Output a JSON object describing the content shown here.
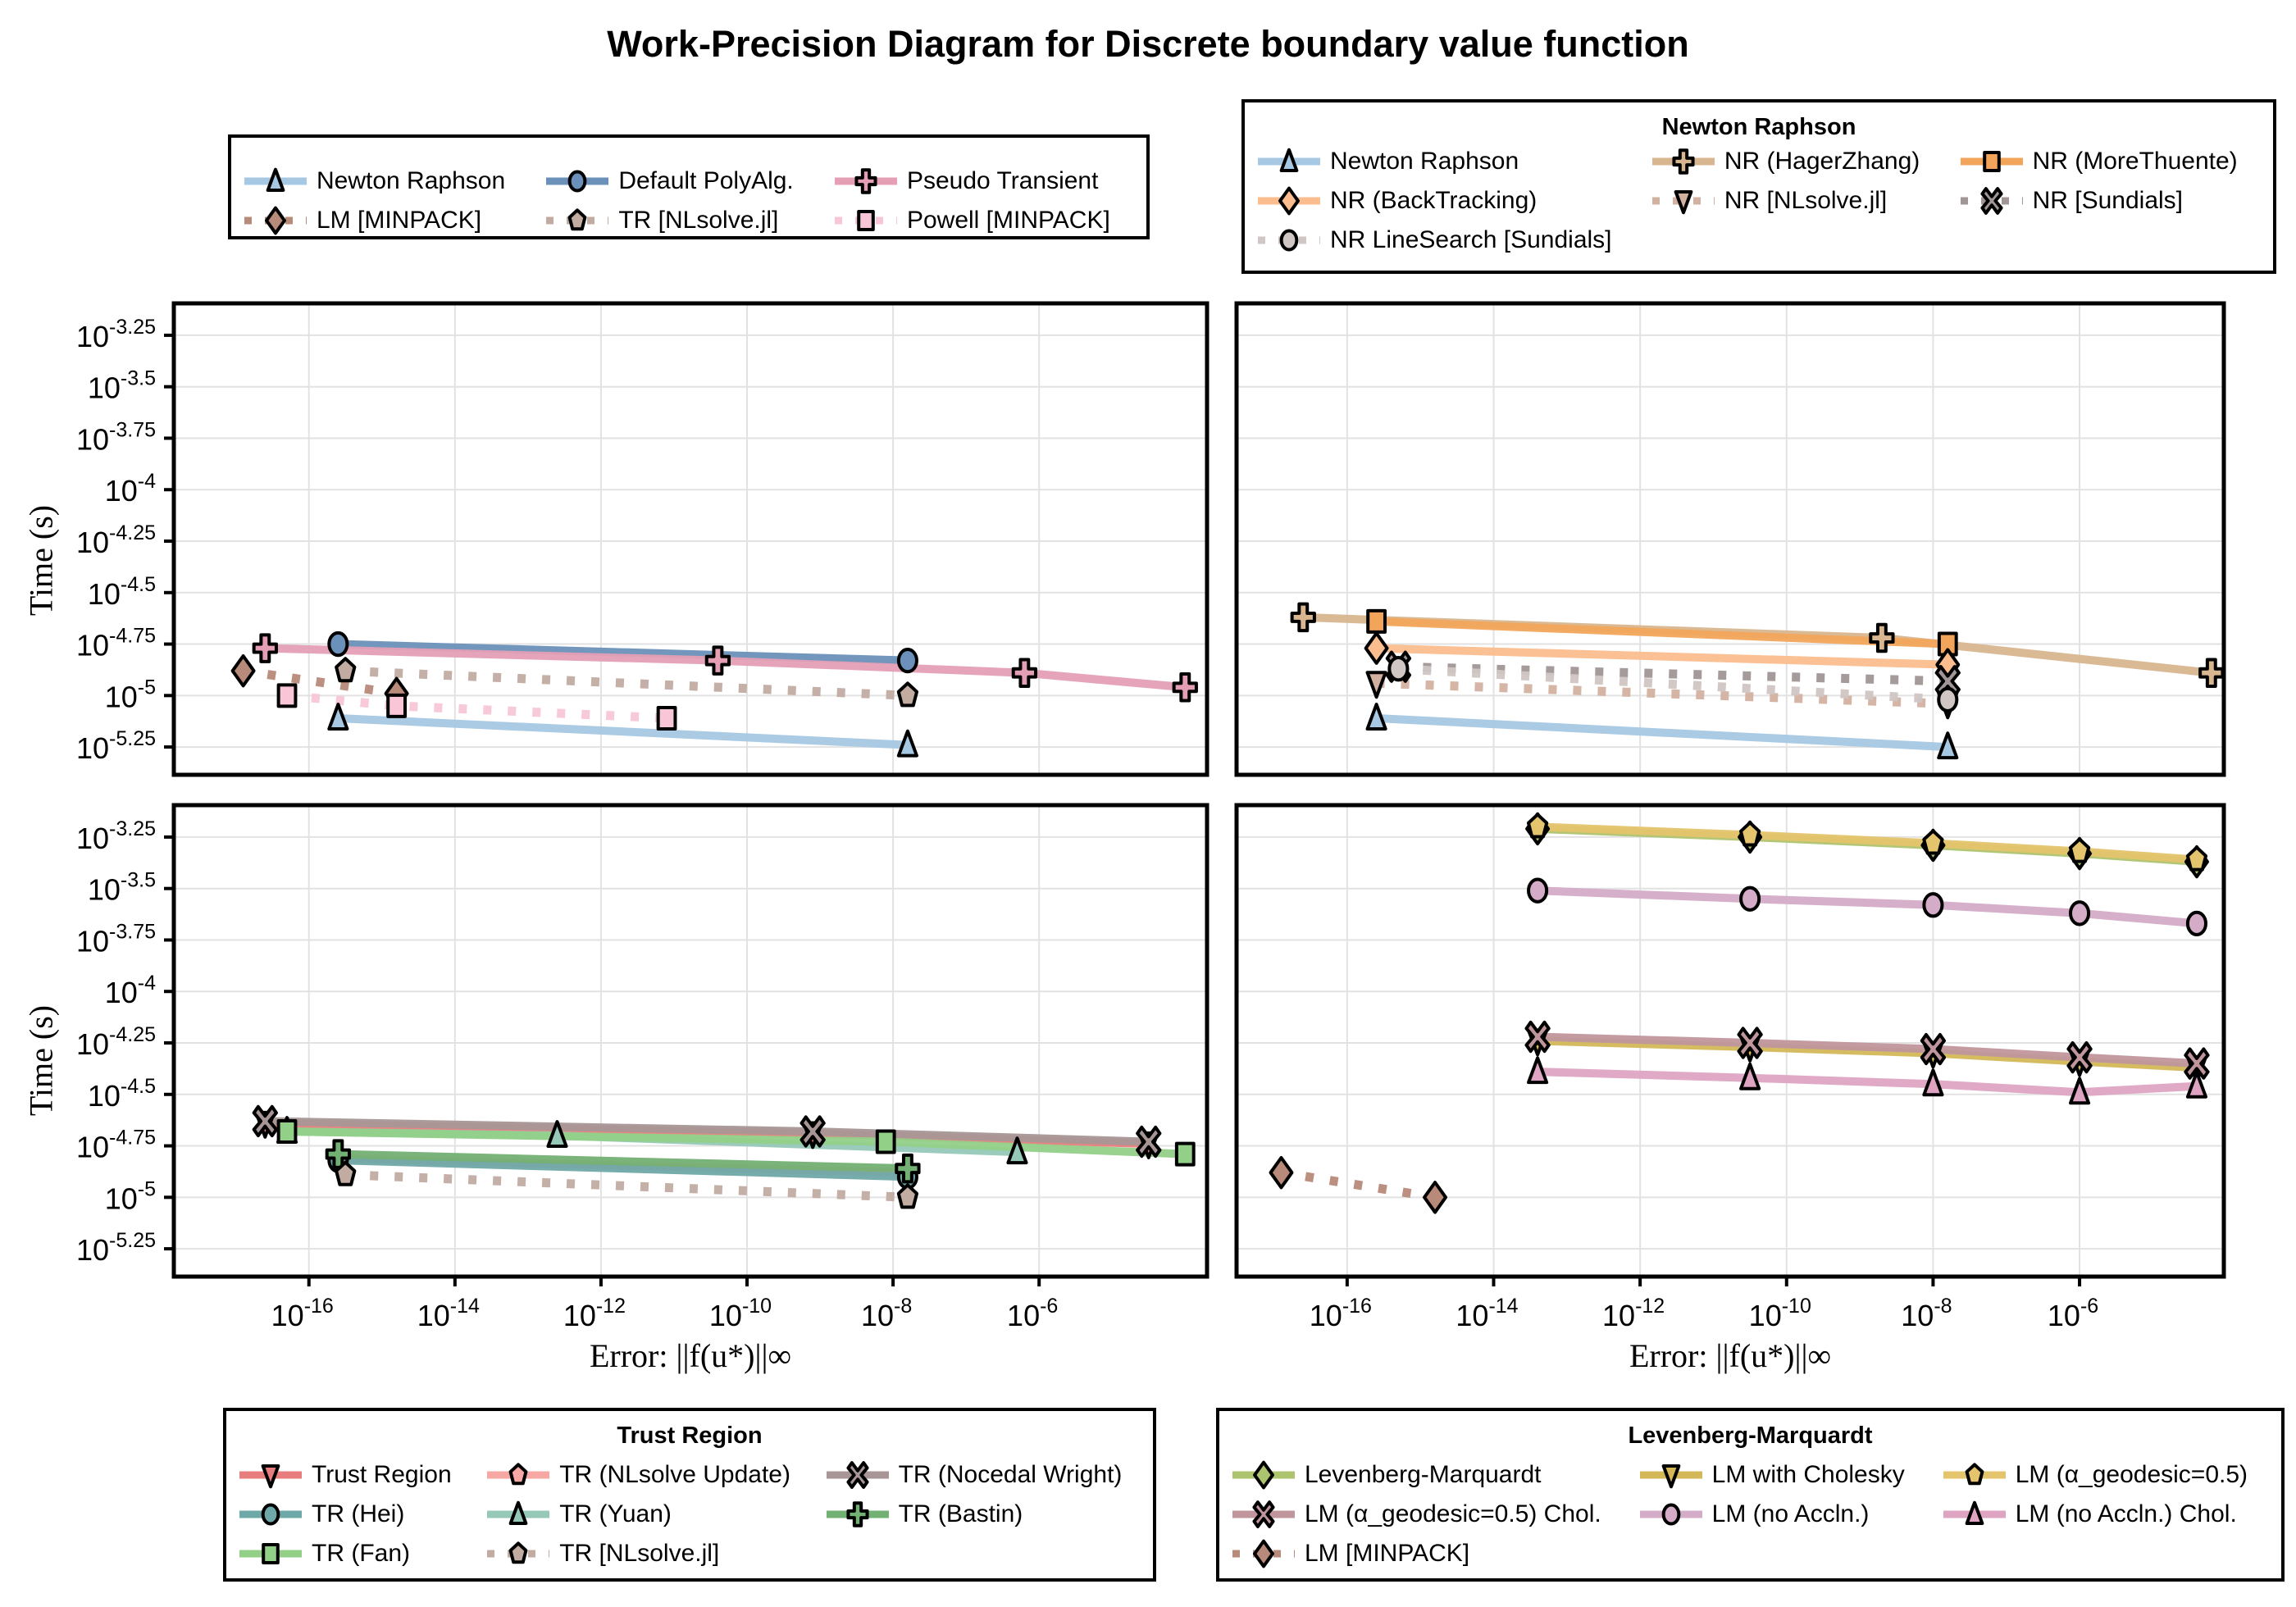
{
  "chart_data": {
    "type": "line",
    "title": "Work-Precision Diagram for Discrete boundary value function",
    "xlabel": "Error: ||f(u*)||∞",
    "ylabel": "Time (s)",
    "xscale": "log10",
    "yscale": "log10",
    "xlim_log10": [
      -17.5,
      -3.4
    ],
    "ylim_log10": [
      -5.4,
      -3.15
    ],
    "x_ticks": [
      {
        "base": "10",
        "exp": "-16",
        "v": -16
      },
      {
        "base": "10",
        "exp": "-14",
        "v": -14
      },
      {
        "base": "10",
        "exp": "-12",
        "v": -12
      },
      {
        "base": "10",
        "exp": "-10",
        "v": -10
      },
      {
        "base": "10",
        "exp": "-8",
        "v": -8
      },
      {
        "base": "10",
        "exp": "-6",
        "v": -6
      }
    ],
    "y_ticks": [
      {
        "base": "10",
        "exp": "-3.25",
        "v": -3.25
      },
      {
        "base": "10",
        "exp": "-3.5",
        "v": -3.5
      },
      {
        "base": "10",
        "exp": "-3.75",
        "v": -3.75
      },
      {
        "base": "10",
        "exp": "-4",
        "v": -4
      },
      {
        "base": "10",
        "exp": "-4.25",
        "v": -4.25
      },
      {
        "base": "10",
        "exp": "-4.5",
        "v": -4.5
      },
      {
        "base": "10",
        "exp": "-4.75",
        "v": -4.75
      },
      {
        "base": "10",
        "exp": "-5",
        "v": -5
      },
      {
        "base": "10",
        "exp": "-5.25",
        "v": -5.25
      }
    ],
    "grid": true,
    "panels": [
      {
        "id": "top-left",
        "legend": {
          "title": "",
          "placement": "top-left",
          "columns": 3
        },
        "series": [
          {
            "name": "Newton Raphson",
            "color": "#a6c8e3",
            "marker": "triangle-up",
            "dash": false,
            "log_error": [
              -15.6,
              -7.8
            ],
            "log_time": [
              -5.11,
              -5.24
            ]
          },
          {
            "name": "Default PolyAlg.",
            "color": "#6b90b9",
            "marker": "circle",
            "dash": false,
            "log_error": [
              -15.6,
              -7.8
            ],
            "log_time": [
              -4.75,
              -4.83
            ]
          },
          {
            "name": "Pseudo Transient",
            "color": "#e49fb5",
            "marker": "cross",
            "dash": false,
            "log_error": [
              -16.6,
              -10.4,
              -6.2,
              -4.0
            ],
            "log_time": [
              -4.77,
              -4.83,
              -4.89,
              -4.96
            ]
          },
          {
            "name": "LM [MINPACK]",
            "color": "#b88a7a",
            "marker": "diamond",
            "dash": true,
            "log_error": [
              -16.9,
              -14.8
            ],
            "log_time": [
              -4.88,
              -4.99
            ]
          },
          {
            "name": "TR [NLsolve.jl]",
            "color": "#c2aca2",
            "marker": "pentagon",
            "dash": true,
            "log_error": [
              -15.5,
              -7.8
            ],
            "log_time": [
              -4.88,
              -5.0
            ]
          },
          {
            "name": "Powell [MINPACK]",
            "color": "#f8c6d6",
            "marker": "rect",
            "dash": true,
            "log_error": [
              -16.3,
              -14.8,
              -11.1
            ],
            "log_time": [
              -5.0,
              -5.05,
              -5.11
            ]
          }
        ]
      },
      {
        "id": "top-right",
        "legend": {
          "title": "Newton Raphson",
          "placement": "top-right",
          "columns": 3
        },
        "series": [
          {
            "name": "Newton Raphson",
            "color": "#a6c8e3",
            "marker": "triangle-up",
            "dash": false,
            "log_error": [
              -15.6,
              -7.8
            ],
            "log_time": [
              -5.11,
              -5.25
            ]
          },
          {
            "name": "NR (HagerZhang)",
            "color": "#d8b68f",
            "marker": "cross",
            "dash": false,
            "log_error": [
              -16.6,
              -8.7,
              -4.2
            ],
            "log_time": [
              -4.62,
              -4.72,
              -4.89
            ]
          },
          {
            "name": "NR (MoreThuente)",
            "color": "#f2a55a",
            "marker": "rect",
            "dash": false,
            "log_error": [
              -15.6,
              -7.8
            ],
            "log_time": [
              -4.64,
              -4.75
            ]
          },
          {
            "name": "NR (BackTracking)",
            "color": "#fbbd8e",
            "marker": "diamond",
            "dash": false,
            "log_error": [
              -15.6,
              -7.8
            ],
            "log_time": [
              -4.77,
              -4.85
            ]
          },
          {
            "name": "NR [NLsolve.jl]",
            "color": "#d3b1a0",
            "marker": "triangle-down",
            "dash": true,
            "log_error": [
              -15.6,
              -7.8
            ],
            "log_time": [
              -4.94,
              -5.04
            ]
          },
          {
            "name": "NR [Sundials]",
            "color": "#a09696",
            "marker": "x",
            "dash": true,
            "log_error": [
              -15.3,
              -7.8
            ],
            "log_time": [
              -4.86,
              -4.93
            ]
          },
          {
            "name": "NR LineSearch [Sundials]",
            "color": "#d0c6c4",
            "marker": "circle",
            "dash": true,
            "log_error": [
              -15.3,
              -7.8
            ],
            "log_time": [
              -4.87,
              -5.02
            ]
          }
        ]
      },
      {
        "id": "bottom-left",
        "legend": {
          "title": "Trust Region",
          "placement": "bottom-left",
          "columns": 3
        },
        "series": [
          {
            "name": "Trust Region",
            "color": "#e87d7d",
            "marker": "triangle-down",
            "dash": false,
            "log_error": [
              -16.6,
              -9.1,
              -4.5
            ],
            "log_time": [
              -4.64,
              -4.69,
              -4.74
            ]
          },
          {
            "name": "TR (NLsolve Update)",
            "color": "#f7a8a4",
            "marker": "pentagon",
            "dash": false,
            "log_error": [
              -15.6,
              -7.8
            ],
            "log_time": [
              -4.81,
              -4.88
            ]
          },
          {
            "name": "TR (Nocedal Wright)",
            "color": "#a89696",
            "marker": "x",
            "dash": false,
            "log_error": [
              -16.6,
              -9.1,
              -4.5
            ],
            "log_time": [
              -4.63,
              -4.68,
              -4.73
            ]
          },
          {
            "name": "TR (Hei)",
            "color": "#6fa8a8",
            "marker": "circle",
            "dash": false,
            "log_error": [
              -15.6,
              -7.8
            ],
            "log_time": [
              -4.82,
              -4.9
            ]
          },
          {
            "name": "TR (Yuan)",
            "color": "#96c8b8",
            "marker": "triangle-up",
            "dash": false,
            "log_error": [
              -16.3,
              -12.6,
              -6.3
            ],
            "log_time": [
              -4.68,
              -4.7,
              -4.78
            ]
          },
          {
            "name": "TR (Bastin)",
            "color": "#73b073",
            "marker": "cross",
            "dash": false,
            "log_error": [
              -15.6,
              -7.8
            ],
            "log_time": [
              -4.79,
              -4.86
            ]
          },
          {
            "name": "TR (Fan)",
            "color": "#92d088",
            "marker": "rect",
            "dash": false,
            "log_error": [
              -16.3,
              -8.1,
              -4.0
            ],
            "log_time": [
              -4.68,
              -4.73,
              -4.79
            ]
          },
          {
            "name": "TR [NLsolve.jl]",
            "color": "#c2aca2",
            "marker": "pentagon",
            "dash": true,
            "log_error": [
              -15.5,
              -7.8
            ],
            "log_time": [
              -4.89,
              -5.0
            ]
          }
        ]
      },
      {
        "id": "bottom-right",
        "legend": {
          "title": "Levenberg-Marquardt",
          "placement": "bottom-right",
          "columns": 3
        },
        "series": [
          {
            "name": "Levenberg-Marquardt",
            "color": "#adc46e",
            "marker": "diamond",
            "dash": false,
            "log_error": [
              -13.4,
              -10.5,
              -8.0,
              -6.0,
              -4.4
            ],
            "log_time": [
              -3.21,
              -3.25,
              -3.29,
              -3.33,
              -3.37
            ]
          },
          {
            "name": "LM with Cholesky",
            "color": "#d4b858",
            "marker": "triangle-down",
            "dash": false,
            "log_error": [
              -13.4,
              -10.5,
              -8.0,
              -6.0,
              -4.4
            ],
            "log_time": [
              -4.24,
              -4.27,
              -4.3,
              -4.34,
              -4.37
            ]
          },
          {
            "name": "LM (α_geodesic=0.5)",
            "color": "#e4c46c",
            "marker": "pentagon",
            "dash": false,
            "log_error": [
              -13.4,
              -10.5,
              -8.0,
              -6.0,
              -4.4
            ],
            "log_time": [
              -3.2,
              -3.24,
              -3.28,
              -3.32,
              -3.36
            ]
          },
          {
            "name": "LM (α_geodesic=0.5) Chol.",
            "color": "#c0969c",
            "marker": "x",
            "dash": false,
            "log_error": [
              -13.4,
              -10.5,
              -8.0,
              -6.0,
              -4.4
            ],
            "log_time": [
              -4.22,
              -4.25,
              -4.28,
              -4.32,
              -4.35
            ]
          },
          {
            "name": "LM (no Accln.)",
            "color": "#d4acc8",
            "marker": "circle",
            "dash": false,
            "log_error": [
              -13.4,
              -10.5,
              -8.0,
              -6.0,
              -4.4
            ],
            "log_time": [
              -3.51,
              -3.55,
              -3.58,
              -3.62,
              -3.67
            ]
          },
          {
            "name": "LM (no Accln.) Chol.",
            "color": "#dea4c2",
            "marker": "triangle-up",
            "dash": false,
            "log_error": [
              -13.4,
              -10.5,
              -8.0,
              -6.0,
              -4.4
            ],
            "log_time": [
              -4.39,
              -4.42,
              -4.45,
              -4.49,
              -4.46
            ]
          },
          {
            "name": "LM [MINPACK]",
            "color": "#b88a7a",
            "marker": "diamond",
            "dash": true,
            "log_error": [
              -16.9,
              -14.8
            ],
            "log_time": [
              -4.88,
              -5.0
            ]
          }
        ]
      }
    ]
  }
}
